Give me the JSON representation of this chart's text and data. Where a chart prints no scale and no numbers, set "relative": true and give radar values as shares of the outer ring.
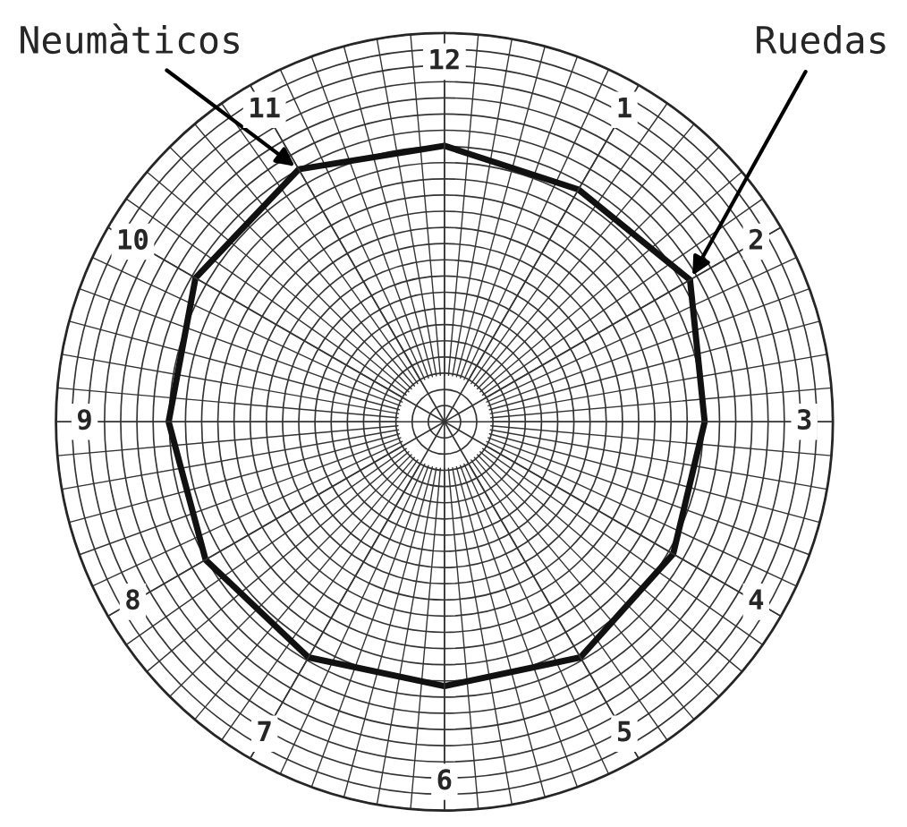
{
  "chart_data": {
    "type": "radar",
    "relative": true,
    "categories": [
      "12",
      "1",
      "2",
      "3",
      "4",
      "5",
      "6",
      "7",
      "8",
      "9",
      "10",
      "11"
    ],
    "series": [
      {
        "color": "#111111",
        "values": [
          0.71,
          0.69,
          0.73,
          0.67,
          0.68,
          0.7,
          0.68,
          0.7,
          0.71,
          0.71,
          0.74,
          0.75
        ]
      }
    ],
    "annotations": [
      {
        "text": "Neumàticos",
        "x": "11"
      },
      {
        "text": "Ruedas",
        "x": "2"
      }
    ],
    "grid": true,
    "marker": "none",
    "line_style": "solid",
    "legend": false
  }
}
